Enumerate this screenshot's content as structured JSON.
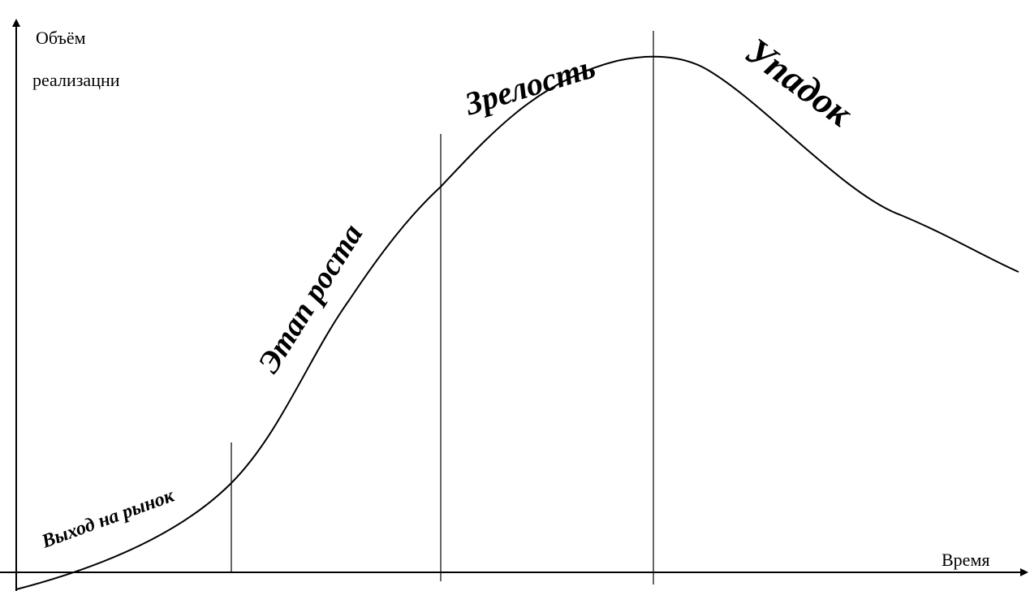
{
  "y_axis_label": [
    "Объём",
    "реализацни"
  ],
  "x_axis_label": "Время",
  "stages": [
    {
      "label": "Выход на рынок"
    },
    {
      "label": "Этап роста"
    },
    {
      "label": "Зрелость"
    },
    {
      "label": "Упадок"
    }
  ]
}
